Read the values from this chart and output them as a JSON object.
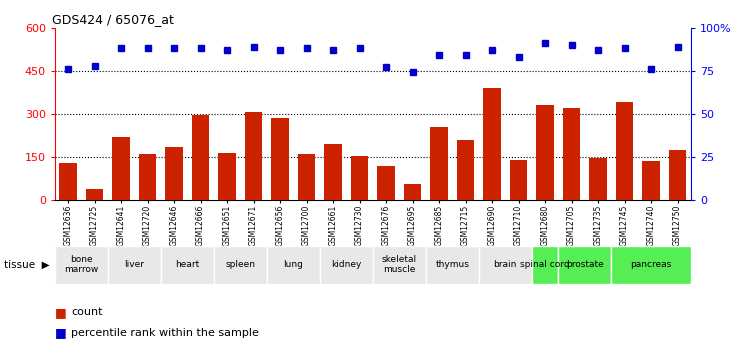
{
  "title": "GDS424 / 65076_at",
  "samples": [
    "GSM12636",
    "GSM12725",
    "GSM12641",
    "GSM12720",
    "GSM12646",
    "GSM12666",
    "GSM12651",
    "GSM12671",
    "GSM12656",
    "GSM12700",
    "GSM12661",
    "GSM12730",
    "GSM12676",
    "GSM12695",
    "GSM12685",
    "GSM12715",
    "GSM12690",
    "GSM12710",
    "GSM12680",
    "GSM12705",
    "GSM12735",
    "GSM12745",
    "GSM12740",
    "GSM12750"
  ],
  "counts": [
    130,
    40,
    220,
    160,
    185,
    295,
    165,
    305,
    285,
    160,
    195,
    155,
    120,
    55,
    255,
    210,
    390,
    140,
    330,
    320,
    145,
    340,
    135,
    175
  ],
  "percentiles": [
    76,
    78,
    88,
    88,
    88,
    88,
    87,
    89,
    87,
    88,
    87,
    88,
    77,
    74,
    84,
    84,
    87,
    83,
    91,
    90,
    87,
    88,
    76,
    89
  ],
  "tissues": [
    {
      "name": "bone\nmarrow",
      "start": 0,
      "end": 2,
      "color": "#e8e8e8"
    },
    {
      "name": "liver",
      "start": 2,
      "end": 4,
      "color": "#e8e8e8"
    },
    {
      "name": "heart",
      "start": 4,
      "end": 6,
      "color": "#e8e8e8"
    },
    {
      "name": "spleen",
      "start": 6,
      "end": 8,
      "color": "#e8e8e8"
    },
    {
      "name": "lung",
      "start": 8,
      "end": 10,
      "color": "#e8e8e8"
    },
    {
      "name": "kidney",
      "start": 10,
      "end": 12,
      "color": "#e8e8e8"
    },
    {
      "name": "skeletal\nmuscle",
      "start": 12,
      "end": 14,
      "color": "#e8e8e8"
    },
    {
      "name": "thymus",
      "start": 14,
      "end": 16,
      "color": "#e8e8e8"
    },
    {
      "name": "brain",
      "start": 16,
      "end": 18,
      "color": "#e8e8e8"
    },
    {
      "name": "spinal cord",
      "start": 18,
      "end": 19,
      "color": "#55ee55"
    },
    {
      "name": "prostate",
      "start": 19,
      "end": 21,
      "color": "#55ee55"
    },
    {
      "name": "pancreas",
      "start": 21,
      "end": 24,
      "color": "#55ee55"
    }
  ],
  "bar_color": "#cc2200",
  "dot_color": "#0000cc",
  "ylim_left": [
    0,
    600
  ],
  "ylim_right": [
    0,
    100
  ],
  "yticks_left": [
    0,
    150,
    300,
    450,
    600
  ],
  "yticks_right": [
    0,
    25,
    50,
    75,
    100
  ],
  "grid_values": [
    150,
    300,
    450
  ],
  "bar_width": 0.65,
  "background_color": "#ffffff",
  "plot_bg_color": "#ffffff"
}
